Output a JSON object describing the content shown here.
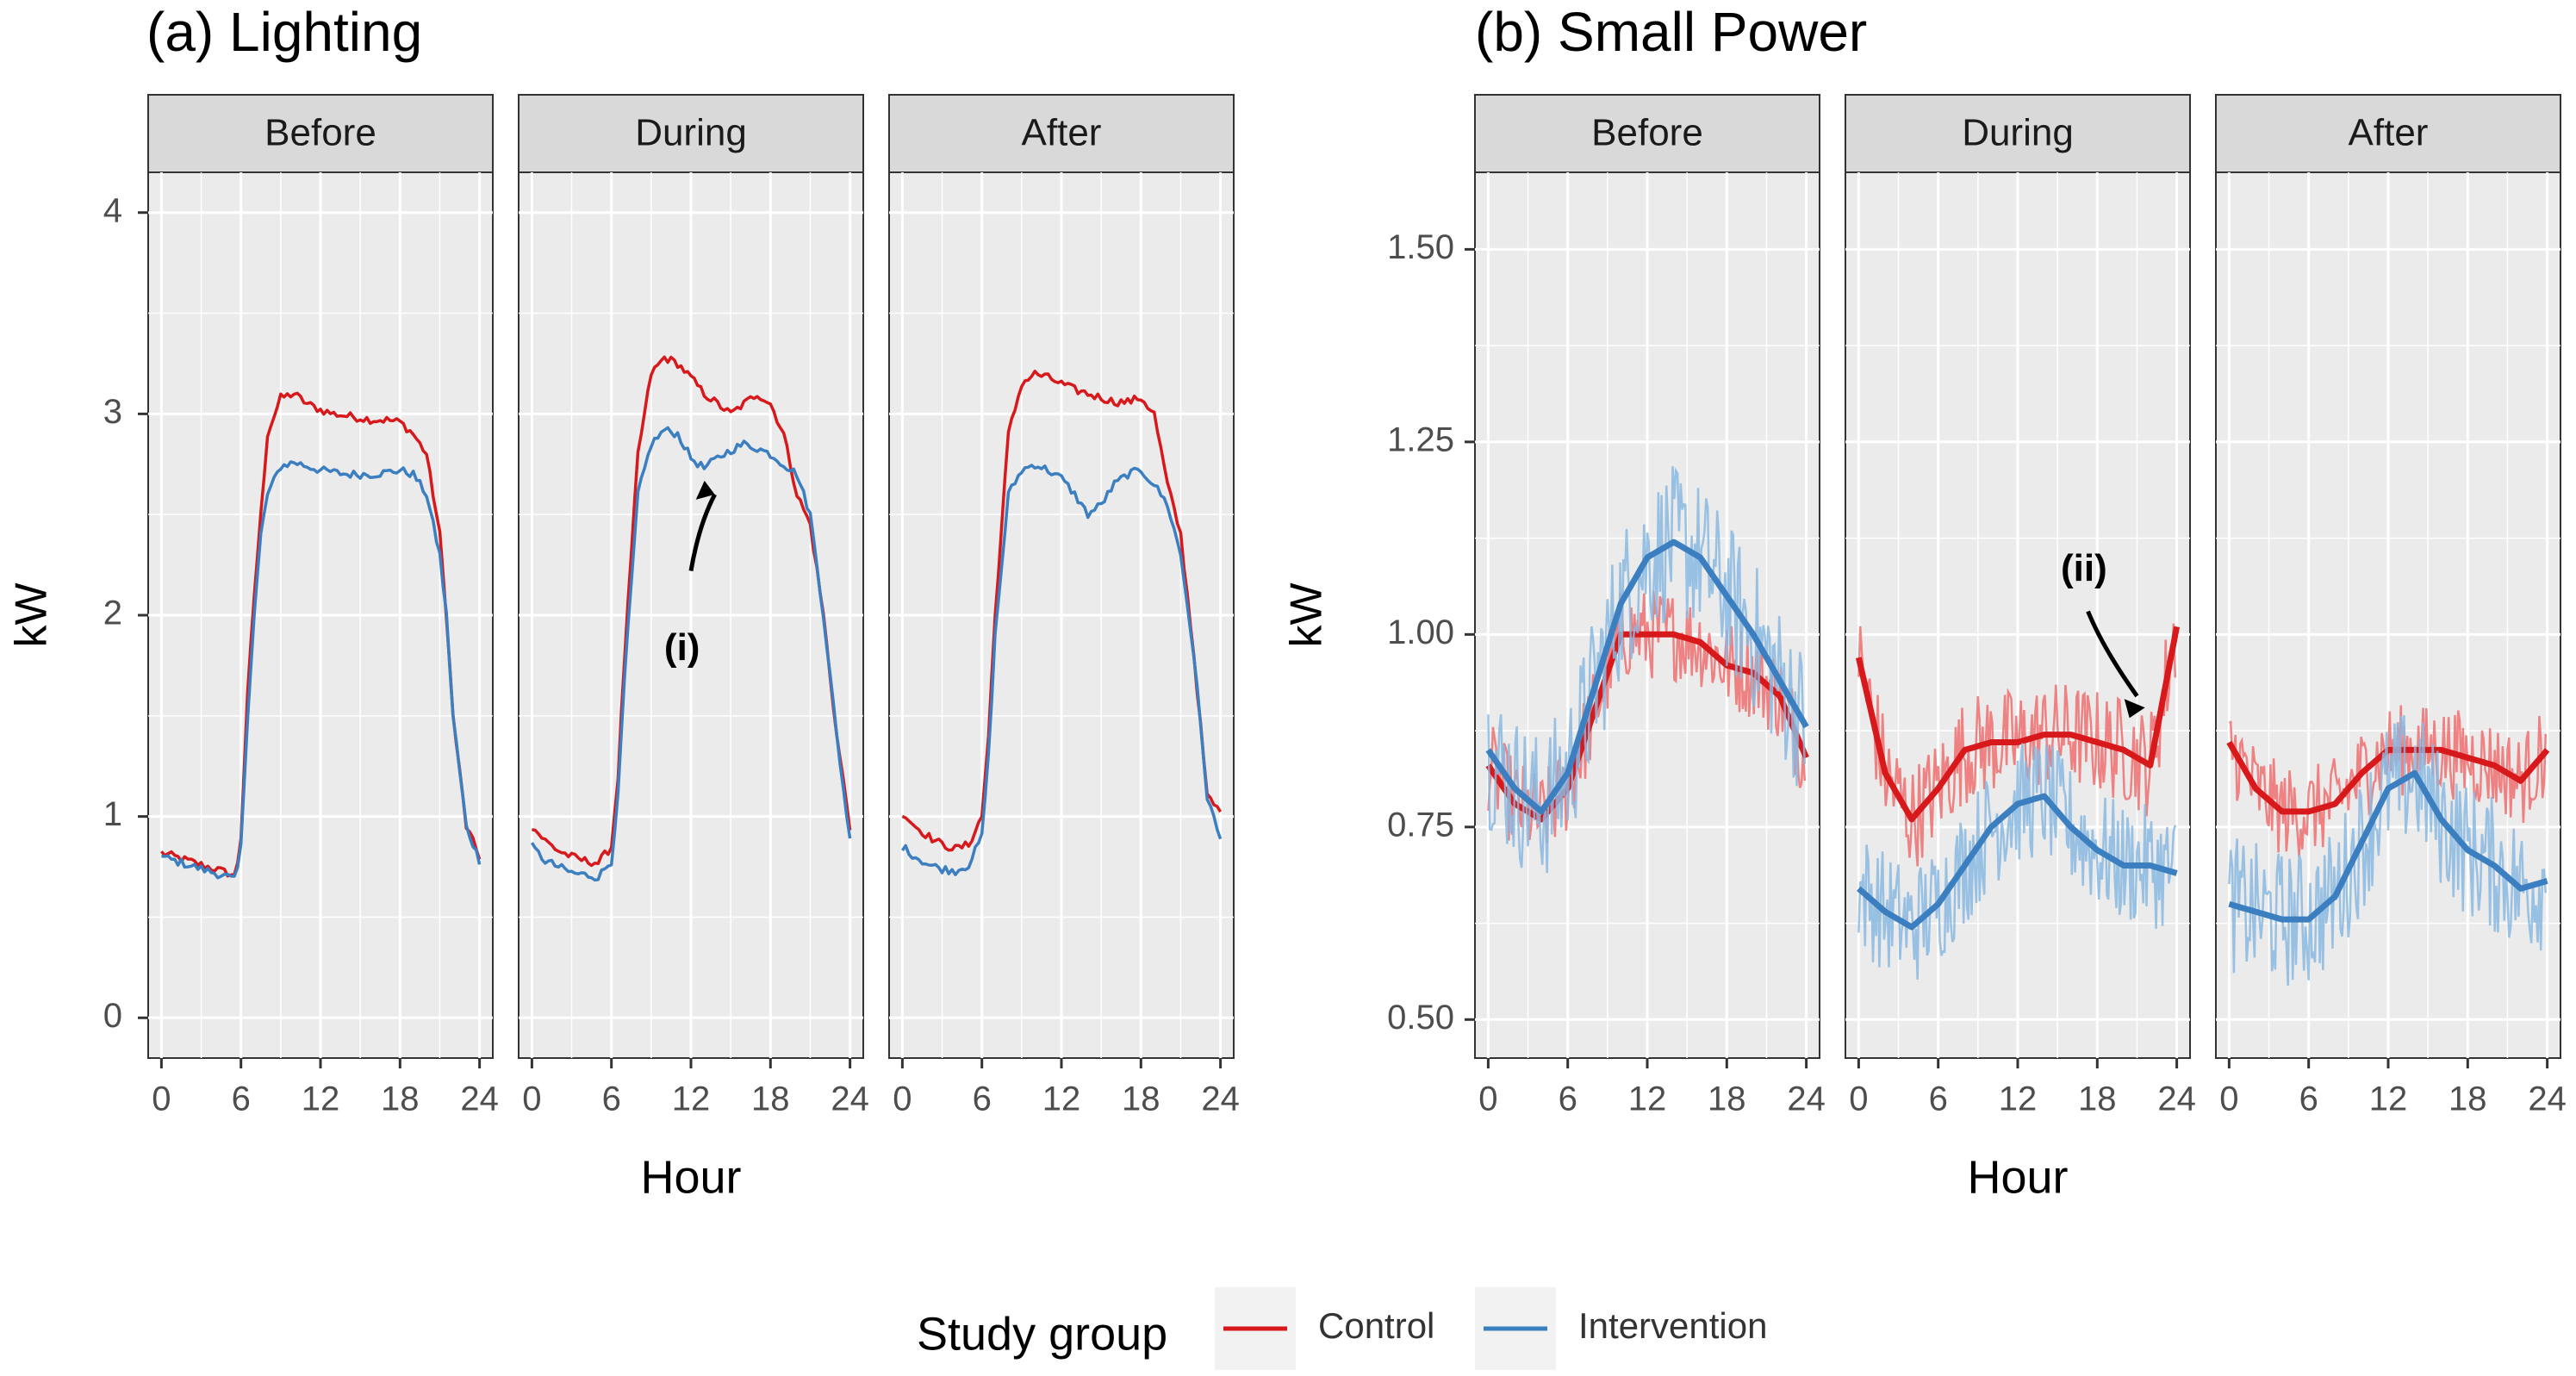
{
  "chart_data": [
    {
      "type": "line",
      "title": "(a) Lighting",
      "xlabel": "Hour",
      "ylabel": "kW",
      "xlim": [
        -1,
        25
      ],
      "ylim": [
        -0.2,
        4.2
      ],
      "x_ticks": [
        "0",
        "6",
        "12",
        "18",
        "24"
      ],
      "y_ticks": [
        "0",
        "1",
        "2",
        "3",
        "4"
      ],
      "grid": true,
      "facets": [
        {
          "label": "Before",
          "annotation": "",
          "series": [
            {
              "name": "Control",
              "x": [
                0,
                1,
                2,
                3,
                4,
                5,
                5.6,
                6,
                6.5,
                7,
                7.5,
                8,
                9,
                10,
                11,
                12,
                13,
                14,
                15,
                16,
                17,
                18,
                19,
                20,
                20.5,
                21,
                21.5,
                22,
                23,
                24
              ],
              "y": [
                0.82,
                0.8,
                0.78,
                0.76,
                0.74,
                0.72,
                0.7,
                0.9,
                1.6,
                2.1,
                2.5,
                2.9,
                3.08,
                3.1,
                3.05,
                3.02,
                3.0,
                2.99,
                2.98,
                2.97,
                2.97,
                2.96,
                2.9,
                2.8,
                2.6,
                2.4,
                2.0,
                1.5,
                0.95,
                0.8
              ]
            },
            {
              "name": "Intervention",
              "x": [
                0,
                1,
                2,
                3,
                4,
                5,
                5.6,
                6,
                6.5,
                7,
                7.5,
                8,
                9,
                10,
                11,
                12,
                13,
                14,
                15,
                16,
                17,
                18,
                19,
                20,
                20.5,
                21,
                21.5,
                22,
                23,
                24
              ],
              "y": [
                0.8,
                0.78,
                0.76,
                0.74,
                0.72,
                0.7,
                0.68,
                0.85,
                1.5,
                2.0,
                2.4,
                2.6,
                2.74,
                2.76,
                2.74,
                2.72,
                2.71,
                2.7,
                2.7,
                2.7,
                2.71,
                2.72,
                2.7,
                2.6,
                2.45,
                2.3,
                2.0,
                1.5,
                0.95,
                0.78
              ]
            }
          ]
        },
        {
          "label": "During",
          "annotation": "(i)",
          "series": [
            {
              "name": "Control",
              "x": [
                0,
                1,
                2,
                3,
                4,
                5,
                6,
                6.5,
                7,
                8,
                9,
                10,
                11,
                12,
                13,
                14,
                15,
                16,
                17,
                18,
                19,
                20,
                21,
                22,
                23,
                24
              ],
              "y": [
                0.95,
                0.88,
                0.83,
                0.8,
                0.78,
                0.77,
                0.85,
                1.2,
                1.8,
                2.8,
                3.2,
                3.28,
                3.25,
                3.18,
                3.1,
                3.05,
                3.0,
                3.05,
                3.1,
                3.05,
                2.9,
                2.6,
                2.45,
                2.0,
                1.4,
                0.95
              ]
            },
            {
              "name": "Intervention",
              "x": [
                0,
                1,
                2,
                3,
                4,
                5,
                6,
                6.5,
                7,
                8,
                9,
                10,
                11,
                12,
                13,
                14,
                15,
                16,
                17,
                18,
                19,
                20,
                21,
                22,
                23,
                24
              ],
              "y": [
                0.85,
                0.78,
                0.75,
                0.72,
                0.71,
                0.7,
                0.78,
                1.1,
                1.7,
                2.6,
                2.85,
                2.92,
                2.9,
                2.78,
                2.73,
                2.78,
                2.82,
                2.85,
                2.83,
                2.8,
                2.75,
                2.7,
                2.5,
                2.0,
                1.4,
                0.88
              ]
            }
          ]
        },
        {
          "label": "After",
          "annotation": "",
          "series": [
            {
              "name": "Control",
              "x": [
                0,
                1,
                2,
                3,
                4,
                5,
                6,
                6.5,
                7,
                8,
                9,
                10,
                11,
                12,
                13,
                14,
                15,
                16,
                17,
                18,
                19,
                20,
                21,
                22,
                23,
                24
              ],
              "y": [
                1.02,
                0.95,
                0.9,
                0.86,
                0.84,
                0.86,
                1.0,
                1.4,
                2.0,
                2.9,
                3.15,
                3.2,
                3.18,
                3.15,
                3.12,
                3.1,
                3.08,
                3.06,
                3.06,
                3.08,
                3.0,
                2.65,
                2.4,
                1.8,
                1.1,
                1.02
              ]
            },
            {
              "name": "Intervention",
              "x": [
                0,
                1,
                2,
                3,
                4,
                5,
                6,
                6.5,
                7,
                8,
                9,
                10,
                11,
                12,
                13,
                14,
                15,
                16,
                17,
                18,
                19,
                20,
                21,
                22,
                23,
                24
              ],
              "y": [
                0.85,
                0.8,
                0.76,
                0.74,
                0.73,
                0.76,
                0.9,
                1.3,
                1.9,
                2.6,
                2.72,
                2.75,
                2.72,
                2.68,
                2.6,
                2.5,
                2.55,
                2.65,
                2.7,
                2.72,
                2.65,
                2.55,
                2.3,
                1.8,
                1.1,
                0.88
              ]
            }
          ]
        }
      ]
    },
    {
      "type": "line",
      "title": "(b) Small Power",
      "xlabel": "Hour",
      "ylabel": "kW",
      "xlim": [
        -1,
        25
      ],
      "ylim": [
        0.45,
        1.6
      ],
      "x_ticks": [
        "0",
        "6",
        "12",
        "18",
        "24"
      ],
      "y_ticks": [
        "0.50",
        "0.75",
        "1.00",
        "1.25",
        "1.50"
      ],
      "grid": true,
      "facets": [
        {
          "label": "Before",
          "annotation": "",
          "series": [
            {
              "name": "Control",
              "smooth_x": [
                0,
                2,
                4,
                6,
                8,
                10,
                12,
                14,
                16,
                18,
                20,
                22,
                24
              ],
              "smooth_y": [
                0.83,
                0.78,
                0.76,
                0.8,
                0.9,
                1.0,
                1.0,
                1.0,
                0.99,
                0.96,
                0.95,
                0.92,
                0.84
              ],
              "band": 0.06
            },
            {
              "name": "Intervention",
              "smooth_x": [
                0,
                2,
                4,
                6,
                8,
                10,
                12,
                14,
                16,
                18,
                20,
                22,
                24
              ],
              "smooth_y": [
                0.85,
                0.8,
                0.77,
                0.82,
                0.93,
                1.04,
                1.1,
                1.12,
                1.1,
                1.05,
                1.0,
                0.94,
                0.88
              ],
              "band": 0.1
            }
          ]
        },
        {
          "label": "During",
          "annotation": "(ii)",
          "series": [
            {
              "name": "Control",
              "smooth_x": [
                0,
                2,
                4,
                6,
                8,
                10,
                12,
                14,
                16,
                18,
                20,
                22,
                24
              ],
              "smooth_y": [
                0.97,
                0.82,
                0.76,
                0.8,
                0.85,
                0.86,
                0.86,
                0.87,
                0.87,
                0.86,
                0.85,
                0.83,
                1.01
              ],
              "band": 0.07
            },
            {
              "name": "Intervention",
              "smooth_x": [
                0,
                2,
                4,
                6,
                8,
                10,
                12,
                14,
                16,
                18,
                20,
                22,
                24
              ],
              "smooth_y": [
                0.67,
                0.64,
                0.62,
                0.65,
                0.7,
                0.75,
                0.78,
                0.79,
                0.75,
                0.72,
                0.7,
                0.7,
                0.69
              ],
              "band": 0.08
            }
          ]
        },
        {
          "label": "After",
          "annotation": "",
          "series": [
            {
              "name": "Control",
              "smooth_x": [
                0,
                2,
                4,
                6,
                8,
                10,
                12,
                14,
                16,
                18,
                20,
                22,
                24
              ],
              "smooth_y": [
                0.86,
                0.8,
                0.77,
                0.77,
                0.78,
                0.82,
                0.85,
                0.85,
                0.85,
                0.84,
                0.83,
                0.81,
                0.85
              ],
              "band": 0.06
            },
            {
              "name": "Intervention",
              "smooth_x": [
                0,
                2,
                4,
                6,
                8,
                10,
                12,
                14,
                16,
                18,
                20,
                22,
                24
              ],
              "smooth_y": [
                0.65,
                0.64,
                0.63,
                0.63,
                0.66,
                0.73,
                0.8,
                0.82,
                0.76,
                0.72,
                0.7,
                0.67,
                0.68
              ],
              "band": 0.09
            }
          ]
        }
      ]
    }
  ],
  "legend": {
    "title": "Study group",
    "placement": "bottom",
    "items": [
      {
        "name": "Control",
        "color": "#d7191c"
      },
      {
        "name": "Intervention",
        "color": "#3c7fc0"
      }
    ]
  },
  "colors": {
    "control": "#d7191c",
    "control_band": "#ef6f6f",
    "intervention": "#3c7fc0",
    "intervention_band": "#8ab8e0",
    "panel_bg": "#ebebeb",
    "strip_bg": "#d9d9d9",
    "grid": "#ffffff"
  }
}
